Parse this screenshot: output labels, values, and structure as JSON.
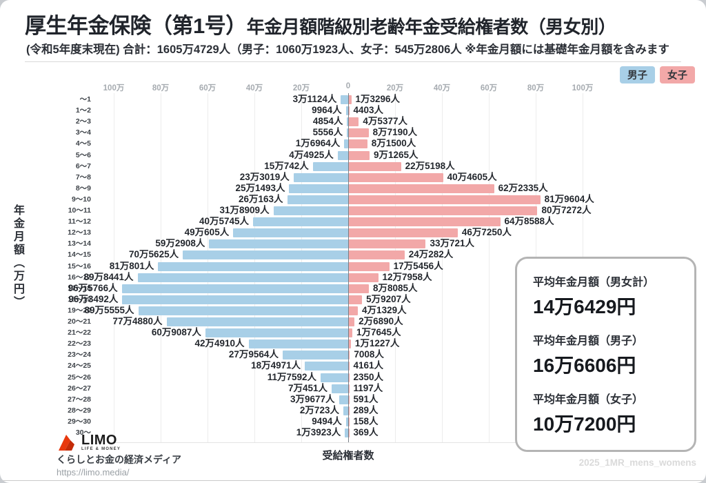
{
  "header": {
    "title_main": "厚生年金保険（第1号）",
    "title_rest": "年金月額階級別老齢年金受給権者数（男女別）",
    "subtitle": "(令和5年度末現在) 合計：1605万4729人（男子：1060万1923人、女子：545万2806人 ※年金月額には基礎年金月額を含みます"
  },
  "chart_data": {
    "type": "bar",
    "variant": "population-pyramid",
    "title": "厚生年金保険（第1号）年金月額階級別老齢年金受給権者数（男女別）",
    "xlabel": "受給権者数",
    "ylabel": "年金月額（万円）",
    "grid": true,
    "legend_position": "top-right",
    "xlim_per_side": [
      0,
      1000000
    ],
    "tick_labels": [
      "100万",
      "80万",
      "60万",
      "40万",
      "20万",
      "0",
      "20万",
      "40万",
      "60万",
      "80万",
      "100万"
    ],
    "tick_values_man": [
      -100,
      -80,
      -60,
      -40,
      -20,
      0,
      20,
      40,
      60,
      80,
      100
    ],
    "categories": [
      "～1",
      "1～2",
      "2～3",
      "3～4",
      "4～5",
      "5～6",
      "6～7",
      "7～8",
      "8～9",
      "9～10",
      "10～11",
      "11～12",
      "12～13",
      "13～14",
      "14～15",
      "15～16",
      "16～17",
      "17～18",
      "18～19",
      "19～20",
      "20～21",
      "21～22",
      "22～23",
      "23～24",
      "24～25",
      "25～26",
      "26～27",
      "27～28",
      "28～29",
      "29～30",
      "30～"
    ],
    "series": [
      {
        "name": "男子",
        "side": "left",
        "color": "#A8CFE7",
        "values": [
          31124,
          9964,
          4854,
          5556,
          16964,
          44925,
          150742,
          233019,
          251493,
          260163,
          318909,
          405745,
          490605,
          592908,
          705625,
          810801,
          898441,
          965766,
          963492,
          895555,
          774880,
          609087,
          424910,
          279564,
          184971,
          117592,
          70451,
          39677,
          20723,
          9494,
          13923
        ],
        "labels": [
          "3万1124人",
          "9964人",
          "4854人",
          "5556人",
          "1万6964人",
          "4万4925人",
          "15万742人",
          "23万3019人",
          "25万1493人",
          "26万163人",
          "31万8909人",
          "40万5745人",
          "49万605人",
          "59万2908人",
          "70万5625人",
          "81万801人",
          "89万8441人",
          "96万5766人",
          "96万3492人",
          "89万5555人",
          "77万4880人",
          "60万9087人",
          "42万4910人",
          "27万9564人",
          "18万4971人",
          "11万7592人",
          "7万451人",
          "3万9677人",
          "2万723人",
          "9494人",
          "1万3923人"
        ]
      },
      {
        "name": "女子",
        "side": "right",
        "color": "#F2A8A8",
        "values": [
          13296,
          4403,
          45377,
          87190,
          81500,
          91265,
          225198,
          404605,
          622335,
          819604,
          807272,
          648588,
          467250,
          330721,
          240282,
          175456,
          127958,
          88085,
          59207,
          41329,
          26890,
          17645,
          11227,
          7008,
          4161,
          2350,
          1197,
          591,
          289,
          158,
          369
        ],
        "labels": [
          "1万3296人",
          "4403人",
          "4万5377人",
          "8万7190人",
          "8万1500人",
          "9万1265人",
          "22万5198人",
          "40万4605人",
          "62万2335人",
          "81万9604人",
          "80万7272人",
          "64万8588人",
          "46万7250人",
          "33万721人",
          "24万282人",
          "17万5456人",
          "12万7958人",
          "8万8085人",
          "5万9207人",
          "4万1329人",
          "2万6890人",
          "1万7645人",
          "1万1227人",
          "7008人",
          "4161人",
          "2350人",
          "1197人",
          "591人",
          "289人",
          "158人",
          "369人"
        ]
      }
    ],
    "legend": [
      {
        "label": "男子",
        "color": "#A8CFE7"
      },
      {
        "label": "女子",
        "color": "#F2A8A8"
      }
    ]
  },
  "summary": {
    "items": [
      {
        "label": "平均年金月額（男女計）",
        "value": "14万6429円"
      },
      {
        "label": "平均年金月額（男子）",
        "value": "16万6606円"
      },
      {
        "label": "平均年金月額（女子）",
        "value": "10万7200円"
      }
    ]
  },
  "footer": {
    "logo_text": "LIMO",
    "logo_subtext": "LIFE & MONEY",
    "tagline": "くらしとお金の経済メディア",
    "url": "https://limo.media/",
    "watermark": "2025_1MR_mens_womens"
  }
}
